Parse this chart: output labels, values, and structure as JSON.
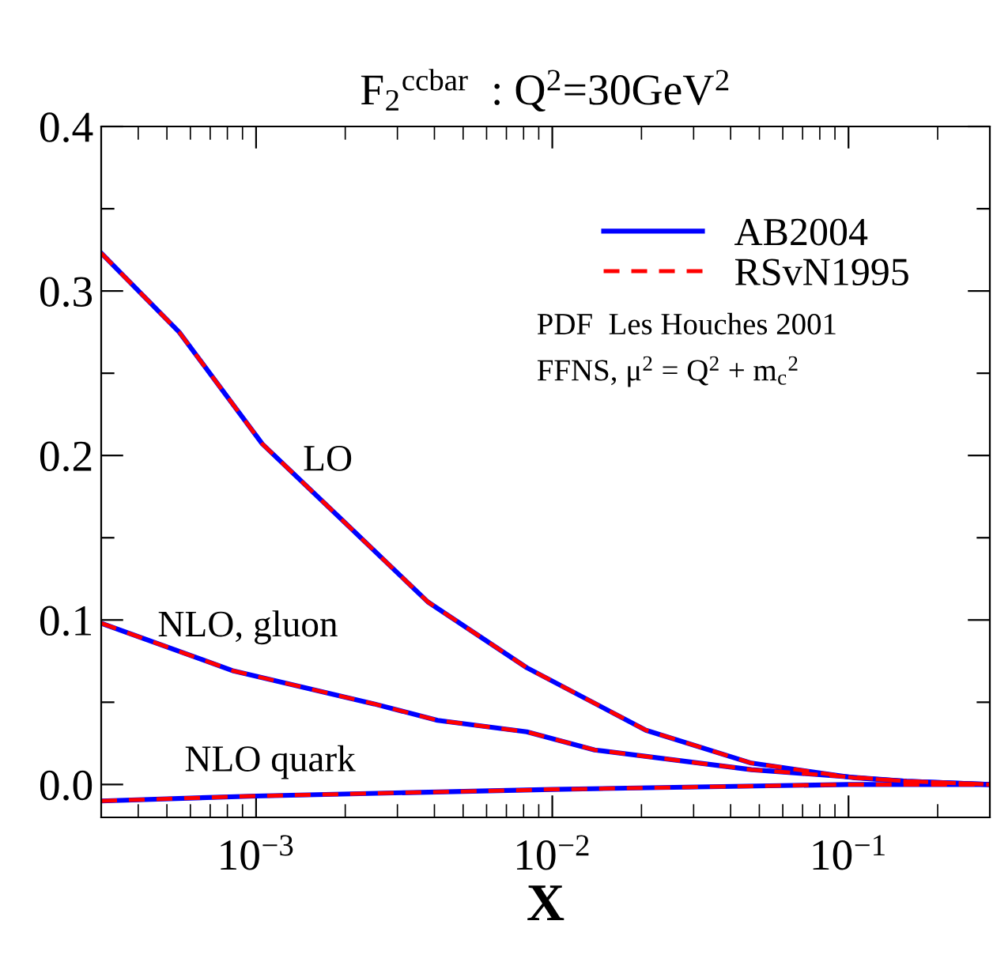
{
  "chart_data": {
    "type": "line",
    "title": "F$_{2}$$^{ccbar}$  : Q$^{2}$=30GeV$^{2}$",
    "xlabel": "X",
    "log": "x",
    "xlim": [
      0.0003,
      0.3
    ],
    "ylim": [
      -0.02,
      0.4
    ],
    "xticks": [
      {
        "value": 0.001,
        "label": "10$^{−3}$"
      },
      {
        "value": 0.01,
        "label": "10$^{−2}$"
      },
      {
        "value": 0.1,
        "label": "10$^{−1}$"
      }
    ],
    "yticks": [
      {
        "value": 0.0,
        "label": "0.0"
      },
      {
        "value": 0.05,
        "label": null
      },
      {
        "value": 0.1,
        "label": "0.1"
      },
      {
        "value": 0.15,
        "label": null
      },
      {
        "value": 0.2,
        "label": "0.2"
      },
      {
        "value": 0.25,
        "label": null
      },
      {
        "value": 0.3,
        "label": "0.3"
      },
      {
        "value": 0.35,
        "label": null
      },
      {
        "value": 0.4,
        "label": "0.4"
      }
    ],
    "grid": false,
    "legend": "top right",
    "series": [
      {
        "name": "AB2004",
        "color": "#0000ff",
        "line_style": "solid",
        "x": [
          0.0003,
          0.00055,
          0.00105,
          0.002,
          0.0038,
          0.0082,
          0.0207,
          0.047,
          0.105,
          0.157,
          0.3
        ],
        "values": [
          0.323,
          0.275,
          0.207,
          0.159,
          0.111,
          0.071,
          0.033,
          0.013,
          0.004,
          0.002,
          0.0
        ]
      },
      {
        "color": "#0000ff",
        "line_style": "solid",
        "x": [
          0.0003,
          0.00084,
          0.0025,
          0.0041,
          0.0082,
          0.0139,
          0.047,
          0.157,
          0.3
        ],
        "values": [
          0.098,
          0.069,
          0.049,
          0.039,
          0.032,
          0.021,
          0.009,
          0.002,
          0.0
        ]
      },
      {
        "color": "#0000ff",
        "line_style": "solid",
        "x": [
          0.0003,
          0.001,
          0.01,
          0.1,
          0.3
        ],
        "values": [
          -0.01,
          -0.007,
          -0.003,
          0.0,
          0.0
        ]
      },
      {
        "name": "RSvN1995",
        "color": "#ff0000",
        "line_style": "dashed",
        "x": [
          0.0003,
          0.00055,
          0.00105,
          0.002,
          0.0038,
          0.0082,
          0.0207,
          0.047,
          0.105,
          0.157,
          0.3
        ],
        "values": [
          0.323,
          0.275,
          0.207,
          0.159,
          0.111,
          0.071,
          0.033,
          0.013,
          0.004,
          0.002,
          0.0
        ]
      },
      {
        "color": "#ff0000",
        "line_style": "dashed",
        "x": [
          0.0003,
          0.00084,
          0.0025,
          0.0041,
          0.0082,
          0.0139,
          0.047,
          0.157,
          0.3
        ],
        "values": [
          0.098,
          0.069,
          0.049,
          0.039,
          0.032,
          0.021,
          0.009,
          0.002,
          0.0
        ]
      },
      {
        "color": "#ff0000",
        "line_style": "dashed",
        "x": [
          0.0003,
          0.001,
          0.01,
          0.1,
          0.3
        ],
        "values": [
          -0.01,
          -0.007,
          -0.003,
          0.0,
          0.0
        ]
      }
    ],
    "annotations": [
      "LO",
      "NLO, gluon",
      "NLO quark",
      "PDF  Les Houches 2001",
      "FFNS, μ$^{2}$ = Q$^{2}$ + m$_{c}$$^{2}$"
    ]
  }
}
